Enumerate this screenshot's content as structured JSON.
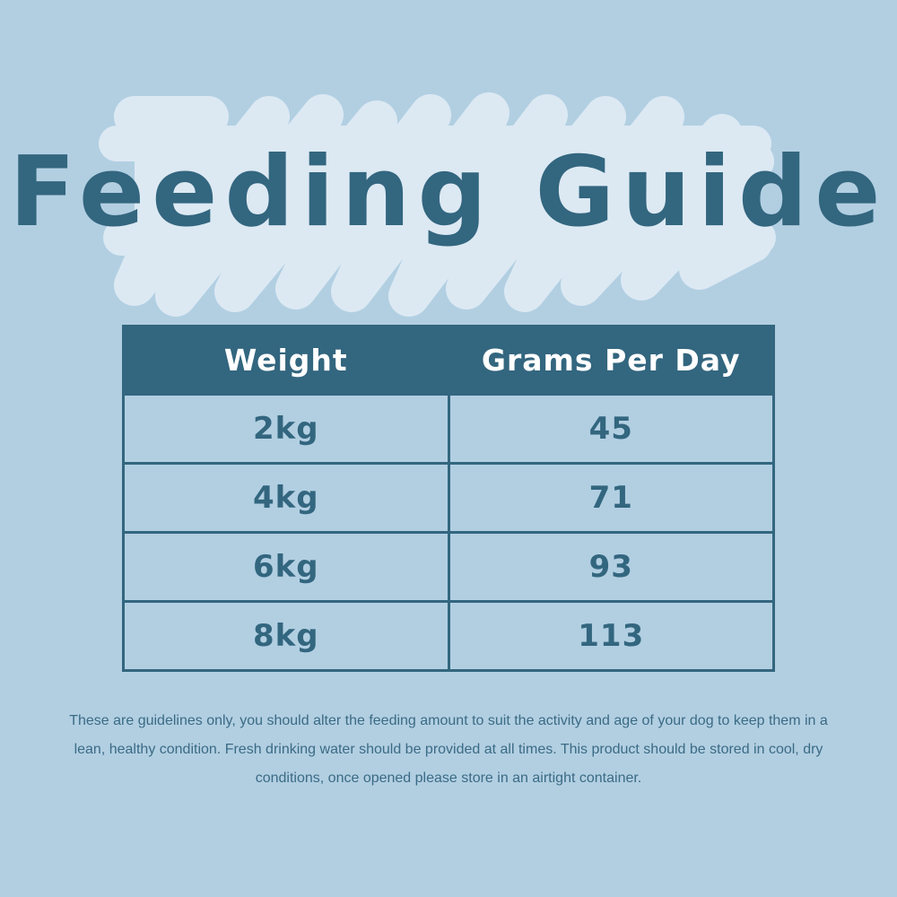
{
  "title": "Feeding Guide",
  "table": {
    "headers": [
      "Weight",
      "Grams Per Day"
    ],
    "rows": [
      [
        "2kg",
        "45"
      ],
      [
        "4kg",
        "71"
      ],
      [
        "6kg",
        "93"
      ],
      [
        "8kg",
        "113"
      ]
    ]
  },
  "note": "These are guidelines only, you should alter the feeding amount to suit the activity and age of your dog to keep them in a lean, healthy condition. Fresh drinking water should be provided at all times. This product should be stored in cool, dry conditions, once opened please store in an airtight container.",
  "colors": {
    "background": "#b2cfe2",
    "accent": "#33667f",
    "scribble": "#dce9f3",
    "header_text": "#ffffff"
  }
}
